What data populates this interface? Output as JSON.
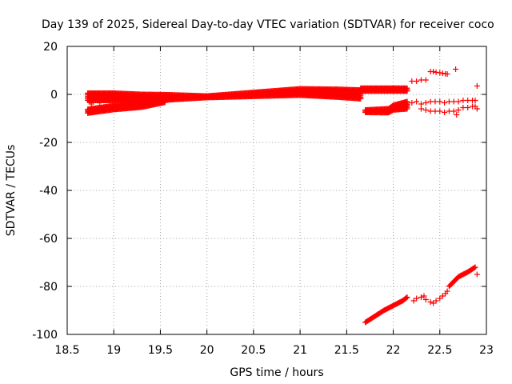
{
  "chart_data": {
    "type": "scatter",
    "title": "Day 139 of 2025, Sidereal Day-to-day VTEC variation (SDTVAR) for receiver coco",
    "xlabel": "GPS time / hours",
    "ylabel": "SDTVAR / TECUs",
    "xlim": [
      18.5,
      23
    ],
    "ylim": [
      -100,
      20
    ],
    "xticks": [
      "18.5",
      "19",
      "19.5",
      "20",
      "20.5",
      "21",
      "21.5",
      "22",
      "22.5",
      "23"
    ],
    "yticks": [
      "20",
      "0",
      "-20",
      "-40",
      "-60",
      "-80",
      "-100"
    ],
    "grid": true,
    "marker": "+",
    "color": "#ff0000",
    "series": [
      {
        "name": "main-upper-band",
        "kind": "band",
        "x_start": 18.72,
        "x_end": 21.65,
        "step": 0.01,
        "center": [
          [
            18.72,
            -1
          ],
          [
            19.0,
            -1
          ],
          [
            19.3,
            -1.5
          ],
          [
            19.6,
            -1.2
          ],
          [
            20.0,
            -1
          ],
          [
            20.5,
            0
          ],
          [
            21.0,
            1
          ],
          [
            21.4,
            0.5
          ],
          [
            21.65,
            0
          ]
        ],
        "half_width": [
          [
            18.72,
            1.5
          ],
          [
            19.3,
            1.5
          ],
          [
            19.5,
            1.2
          ],
          [
            20.0,
            0.3
          ],
          [
            20.5,
            0.8
          ],
          [
            21.0,
            1.3
          ],
          [
            21.65,
            1.8
          ]
        ]
      },
      {
        "name": "lower-band",
        "kind": "band",
        "x_start": 18.72,
        "x_end": 19.55,
        "step": 0.01,
        "center": [
          [
            18.72,
            -7
          ],
          [
            19.0,
            -5.5
          ],
          [
            19.3,
            -4.5
          ],
          [
            19.55,
            -2.5
          ]
        ],
        "half_width": [
          [
            18.72,
            0.8
          ],
          [
            19.55,
            0.8
          ]
        ]
      },
      {
        "name": "late-upper-band",
        "kind": "band",
        "x_start": 21.65,
        "x_end": 22.15,
        "step": 0.01,
        "center": [
          [
            21.65,
            2
          ],
          [
            22.15,
            2
          ]
        ],
        "half_width": [
          [
            21.65,
            0.6
          ],
          [
            22.15,
            0.6
          ]
        ]
      },
      {
        "name": "late-lower-band",
        "kind": "band",
        "x_start": 21.7,
        "x_end": 22.15,
        "step": 0.01,
        "center": [
          [
            21.7,
            -7
          ],
          [
            21.95,
            -6.8
          ],
          [
            22.0,
            -5.5
          ],
          [
            22.15,
            -4.5
          ]
        ],
        "half_width": [
          [
            21.7,
            0.5
          ],
          [
            21.95,
            0.8
          ],
          [
            22.15,
            1.5
          ]
        ]
      },
      {
        "name": "deep-track",
        "kind": "line",
        "x_start": 21.7,
        "x_end": 22.15,
        "step": 0.01,
        "points": [
          [
            21.7,
            -95
          ],
          [
            21.8,
            -92.5
          ],
          [
            21.9,
            -90
          ],
          [
            22.0,
            -88
          ],
          [
            22.1,
            -86
          ],
          [
            22.15,
            -84.5
          ]
        ]
      },
      {
        "name": "deep-track-late",
        "kind": "line",
        "x_start": 22.6,
        "x_end": 22.88,
        "step": 0.01,
        "points": [
          [
            22.6,
            -80
          ],
          [
            22.65,
            -78
          ],
          [
            22.7,
            -76
          ],
          [
            22.75,
            -75
          ],
          [
            22.8,
            -74
          ],
          [
            22.88,
            -72
          ]
        ]
      },
      {
        "name": "scattered",
        "kind": "points",
        "points": [
          [
            18.72,
            0.5
          ],
          [
            18.74,
            -3
          ],
          [
            18.76,
            -4
          ],
          [
            18.8,
            -2
          ],
          [
            18.85,
            -3.5
          ],
          [
            22.22,
            -86
          ],
          [
            22.25,
            -85
          ],
          [
            22.3,
            -84.5
          ],
          [
            22.33,
            -84
          ],
          [
            22.35,
            -85.5
          ],
          [
            22.4,
            -86.5
          ],
          [
            22.43,
            -87
          ],
          [
            22.46,
            -86
          ],
          [
            22.5,
            -85
          ],
          [
            22.53,
            -84
          ],
          [
            22.56,
            -83
          ],
          [
            22.58,
            -82
          ],
          [
            22.2,
            5.5
          ],
          [
            22.25,
            5.5
          ],
          [
            22.3,
            6
          ],
          [
            22.35,
            6
          ],
          [
            22.4,
            9.5
          ],
          [
            22.43,
            9.5
          ],
          [
            22.46,
            9.2
          ],
          [
            22.5,
            9
          ],
          [
            22.53,
            8.8
          ],
          [
            22.56,
            8.6
          ],
          [
            22.58,
            8.5
          ],
          [
            22.67,
            10.5
          ],
          [
            22.2,
            -3.5
          ],
          [
            22.25,
            -3
          ],
          [
            22.3,
            -4
          ],
          [
            22.35,
            -3.5
          ],
          [
            22.4,
            -3
          ],
          [
            22.45,
            -3
          ],
          [
            22.5,
            -3
          ],
          [
            22.55,
            -3.5
          ],
          [
            22.6,
            -3
          ],
          [
            22.65,
            -3
          ],
          [
            22.7,
            -3
          ],
          [
            22.75,
            -2.5
          ],
          [
            22.8,
            -2.5
          ],
          [
            22.85,
            -2.5
          ],
          [
            22.88,
            -2.5
          ],
          [
            22.3,
            -6
          ],
          [
            22.35,
            -6.5
          ],
          [
            22.4,
            -7
          ],
          [
            22.45,
            -7
          ],
          [
            22.5,
            -7
          ],
          [
            22.55,
            -7.5
          ],
          [
            22.6,
            -7
          ],
          [
            22.65,
            -7
          ],
          [
            22.68,
            -8.5
          ],
          [
            22.7,
            -6.5
          ],
          [
            22.75,
            -5.5
          ],
          [
            22.8,
            -5.5
          ],
          [
            22.85,
            -5
          ],
          [
            22.88,
            -5
          ],
          [
            22.9,
            -6
          ],
          [
            22.9,
            3.5
          ],
          [
            22.9,
            -75
          ]
        ]
      }
    ]
  }
}
